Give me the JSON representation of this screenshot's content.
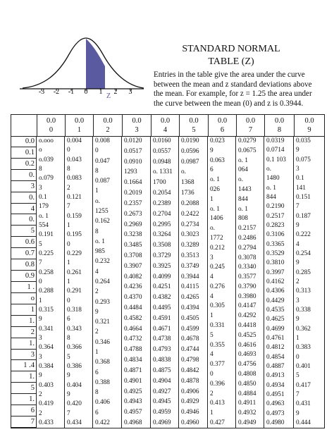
{
  "curve": {
    "tick_labels": [
      "-3",
      "-2",
      "-1",
      "0",
      "1",
      "2",
      "3"
    ],
    "z_label": "Z",
    "colors": {
      "shade": "#5a5aa0",
      "axis": "#111111"
    }
  },
  "title": {
    "line1": "STANDARD NORMAL",
    "line2": "TABLE (Z)"
  },
  "description": {
    "lines": [
      "Entries in the table give the area under the curve",
      "between the mean and z standard deviations above",
      "the mean. For example, for z = 1.25 the area under",
      "the curve between the mean (0) and z is 0.3944."
    ]
  },
  "table": {
    "headers": [
      {
        "top": "",
        "bottom": ""
      },
      {
        "top": "0.0",
        "bottom": "0"
      },
      {
        "top": "0.0",
        "bottom": "1"
      },
      {
        "top": "0.0",
        "bottom": "2"
      },
      {
        "top": "0.0",
        "bottom": "3"
      },
      {
        "top": "0.0",
        "bottom": "4"
      },
      {
        "top": "0.0",
        "bottom": "5"
      },
      {
        "top": "0.0",
        "bottom": "6"
      },
      {
        "top": "0.0",
        "bottom": "7"
      },
      {
        "top": "0.0",
        "bottom": "8"
      },
      {
        "top": "0.0",
        "bottom": "9"
      }
    ],
    "z_labels": [
      "0.0",
      "0.1",
      "0.2",
      "0.",
      "3",
      "0.",
      "4",
      "0.",
      "5",
      "0.6",
      "0.7",
      "0.8",
      "0.9",
      "1 .",
      "o",
      "1",
      "1.",
      "2",
      "1.",
      "3",
      "1 .4",
      "1.",
      "5",
      "1.",
      "6",
      "7"
    ],
    "columns": [
      [
        "o.ooo",
        "o",
        "o.039",
        "8",
        "o.079",
        "3",
        "0.1",
        "179",
        "o. 1",
        "554",
        "0.191",
        "5",
        "0.225",
        "7",
        "0.258",
        "0",
        "0.288",
        "1",
        "0.315",
        "9",
        "0.341",
        "3",
        "0.364",
        "3",
        "0.384",
        "9",
        "0.403",
        "2",
        "0.419",
        "2",
        "0.433"
      ],
      [
        "0.004",
        "0",
        "0.043",
        "8",
        "0.083",
        "2",
        "0.121",
        "7",
        "0.159",
        "1",
        "0.195",
        "0",
        "0.229",
        "1",
        "0.261",
        "1",
        "0.291",
        "0",
        "0.318",
        "6",
        "0.343",
        "8",
        "0.366",
        "5",
        "0.386",
        "9",
        "0.404",
        "9",
        "0.420",
        "7",
        "0.434"
      ],
      [
        "0.008",
        "0",
        "0.047",
        "8",
        "0.087",
        "1",
        "o.",
        "1255",
        "0.162",
        "8",
        "o. 1",
        "985",
        "0.232",
        "4",
        "0.264",
        "2",
        "0.293",
        "9",
        "0.321",
        "2",
        "0.346",
        "1",
        "0.368",
        "6",
        "0.388",
        "8",
        "0.406",
        "6",
        "0.422"
      ],
      [
        "0.0120",
        "0.0517",
        "0.0910",
        "1293",
        "0.1664",
        "0.2019",
        "0.2357",
        "0.2673",
        "0.2969",
        "0.3238",
        "0.3485",
        "0.3708",
        "0.3907",
        "0.4082",
        "0.4236",
        "0.4370",
        "0.4484",
        "0.4582",
        "0.4664",
        "0.4732",
        "0.4788",
        "0.4834",
        "0.4871",
        "0.4901",
        "0.4925",
        "0.4943",
        "0.4957",
        "0.4968"
      ],
      [
        "0.0160",
        "0.0557",
        "0.0948",
        "o. 1331",
        "1700",
        "0.2054",
        "0.2389",
        "0.2704",
        "0.2995",
        "0.3264",
        "0.3508",
        "0.3729",
        "0.3925",
        "0.4099",
        "0.4251",
        "0.4382",
        "0.4495",
        "0.4591",
        "0.4671",
        "0.4738",
        "0.4793",
        "0.4838",
        "0.4875",
        "0.4904",
        "0.4927",
        "0.4945",
        "0.4959",
        "0.4969"
      ],
      [
        "0.0190",
        "0.0596",
        "0.0987",
        "o.",
        "1368",
        "1736",
        "0.2088",
        "0.2422",
        "0.2734",
        "0.3023",
        "0.3289",
        "0.3513",
        "0.3749",
        "0.3944",
        "0.4115",
        "0.4265",
        "0.4394",
        "0.4505",
        "0.4599",
        "0.4678",
        "0.4744",
        "0.4798",
        "0.4842",
        "0.4878",
        "0.4906",
        "0.4929",
        "0.4946",
        "0.4960"
      ],
      [
        "0.023",
        "9",
        "0.063",
        "6",
        "o. 1",
        "026",
        "1",
        "o. 1",
        "1406",
        "o.",
        "1772",
        "0.212",
        "3",
        "0.245",
        "4",
        "0.276",
        "4",
        "0.305",
        "1",
        "0.331",
        "5",
        "0.355",
        "4",
        "0.377",
        "0",
        "0.396",
        "2",
        "0.413",
        "1",
        "0.427"
      ],
      [
        "0.0279",
        "0.0675",
        "o. 1",
        "064",
        "o.",
        "1443",
        "844",
        "o. 1",
        "808",
        "0.2157",
        "0.2486",
        "0.2794",
        "0.3078",
        "0.3340",
        "0.3577",
        "0.3790",
        "0.3980",
        "0.4147",
        "0.4292",
        "0.4418",
        "0.4525",
        "0.4616",
        "0.4693",
        "0.4756",
        "0.4808",
        "0.4850",
        "0.4884",
        "0.4911",
        "0.4932",
        "0.4949"
      ],
      [
        "0.0319",
        "0.0714",
        "0.1 103",
        "o.",
        "1480",
        "o. 1",
        "844",
        "0.2190",
        "0.2517",
        "0.2823",
        "0.3106",
        "0.3365",
        "0.3529",
        "0.3810",
        "0.3997",
        "0.4162",
        "0.4306",
        "0.4429",
        "0.4535",
        "0.4625",
        "0.4699",
        "0.4761",
        "0.4812",
        "0.4854",
        "0.4887",
        "0.4913",
        "0.4934",
        "0.4951",
        "0.4963",
        "0.4973",
        "0.4980"
      ],
      [
        "0.035",
        "9",
        "0.075",
        "3",
        "0.1",
        "141",
        "0.151",
        "7",
        "0.187",
        "9",
        "0.222",
        "4",
        "0.254",
        "9",
        "0.285",
        "2",
        "0.313",
        "3",
        "0.338",
        "9",
        "0.362",
        "1",
        "0.383",
        "0",
        "0.401",
        "5",
        "0.417",
        "7",
        "0.431",
        "9",
        "0.444"
      ]
    ]
  }
}
